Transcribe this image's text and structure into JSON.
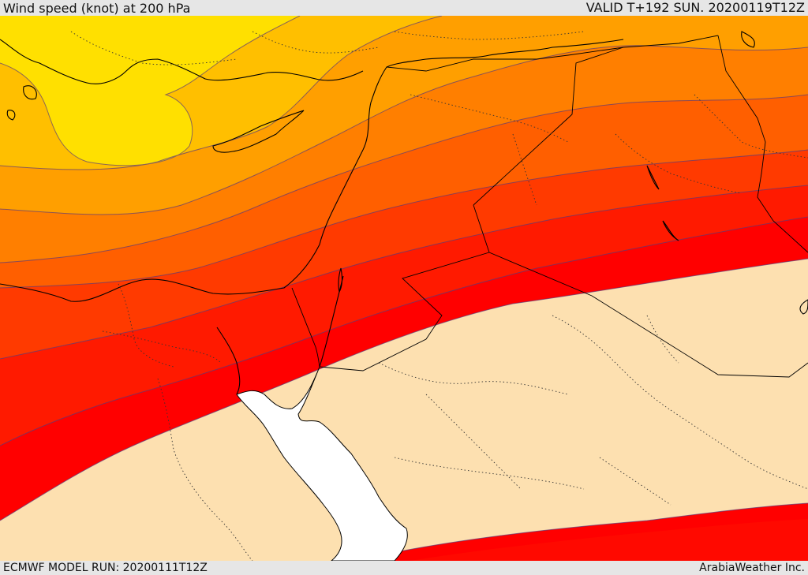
{
  "header": {
    "title": "Wind speed (knot) at 200 hPa",
    "valid": "VALID T+192 SUN. 20200119T12Z"
  },
  "footer": {
    "model_run": "ECMWF MODEL RUN: 20200111T12Z",
    "credit": "ArabiaWeather Inc."
  },
  "colors": {
    "band_1": "#ffe000",
    "band_2": "#ffbf00",
    "band_3": "#ff9f00",
    "band_4": "#ff7f00",
    "band_5": "#ff5f00",
    "band_6": "#ff3a00",
    "band_7": "#ff1a00",
    "band_8": "#ff0000",
    "calm": "#fde0b0",
    "sea": "#ffffff"
  }
}
